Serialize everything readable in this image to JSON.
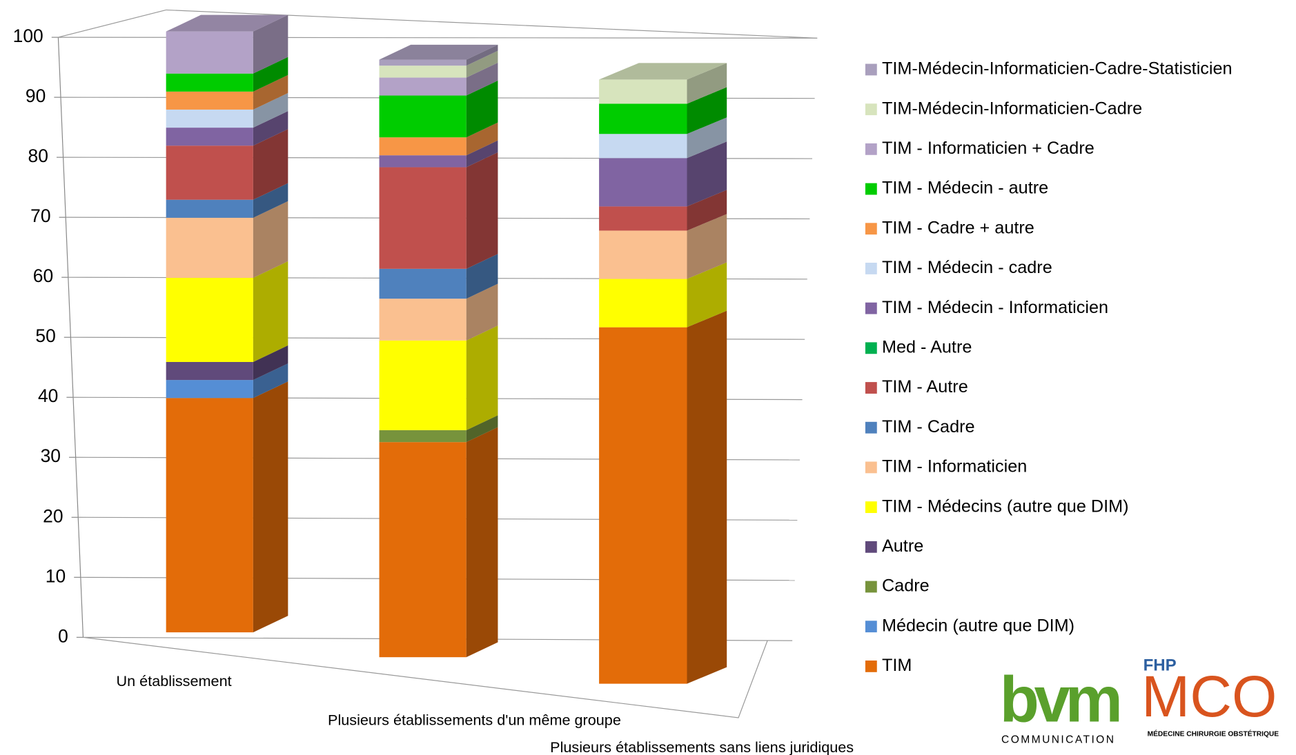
{
  "chart_data": {
    "type": "bar3d_stacked",
    "categories": [
      "Un établissement",
      "Plusieurs établissements d'un même groupe",
      "Plusieurs établissements sans liens juridiques"
    ],
    "ylim": [
      0,
      100
    ],
    "yticks": [
      0,
      10,
      20,
      30,
      40,
      50,
      60,
      70,
      80,
      90,
      100
    ],
    "grid": true,
    "legend": "right",
    "series": [
      {
        "name": "TIM",
        "color": "#e36c09",
        "values": [
          39,
          36,
          59
        ]
      },
      {
        "name": "Médecin (autre que DIM)",
        "color": "#558ed5",
        "values": [
          3,
          0,
          0
        ]
      },
      {
        "name": "Cadre",
        "color": "#77933c",
        "values": [
          0,
          2,
          0
        ]
      },
      {
        "name": "Autre",
        "color": "#604a7b",
        "values": [
          3,
          0,
          0
        ]
      },
      {
        "name": "TIM - Médecins (autre que DIM)",
        "color": "#ffff00",
        "values": [
          14,
          15,
          8
        ]
      },
      {
        "name": "TIM - Informaticien",
        "color": "#fac090",
        "values": [
          10,
          7,
          8
        ]
      },
      {
        "name": "TIM - Cadre",
        "color": "#4f81bd",
        "values": [
          3,
          5,
          0
        ]
      },
      {
        "name": "TIM - Autre",
        "color": "#c0504d",
        "values": [
          9,
          17,
          4
        ]
      },
      {
        "name": "Med - Autre",
        "color": "#00b050",
        "values": [
          0,
          0,
          0
        ]
      },
      {
        "name": "TIM - Médecin - Informaticien",
        "color": "#8064a2",
        "values": [
          3,
          2,
          8
        ]
      },
      {
        "name": "TIM - Médecin - cadre",
        "color": "#c6d9f1",
        "values": [
          3,
          0,
          4
        ]
      },
      {
        "name": "TIM - Cadre + autre",
        "color": "#f79646",
        "values": [
          3,
          3,
          0
        ]
      },
      {
        "name": "TIM - Médecin - autre",
        "color": "#00cc00",
        "values": [
          3,
          7,
          5
        ]
      },
      {
        "name": "TIM - Informaticien + Cadre",
        "color": "#b3a2c7",
        "values": [
          7,
          3,
          0
        ]
      },
      {
        "name": "TIM-Médecin-Informaticien-Cadre",
        "color": "#d7e4bd",
        "values": [
          0,
          2,
          4
        ]
      },
      {
        "name": "TIM-Médecin-Informaticien-Cadre-Statisticien",
        "color": "#a99fbd",
        "values": [
          0,
          1,
          0
        ]
      }
    ]
  },
  "logo": {
    "brand": "bvm",
    "brand_sub": "COMMUNICATION",
    "org_top": "FHP",
    "org": "MCO",
    "org_sub": "MÉDECINE CHIRURGIE OBSTÉTRIQUE"
  }
}
